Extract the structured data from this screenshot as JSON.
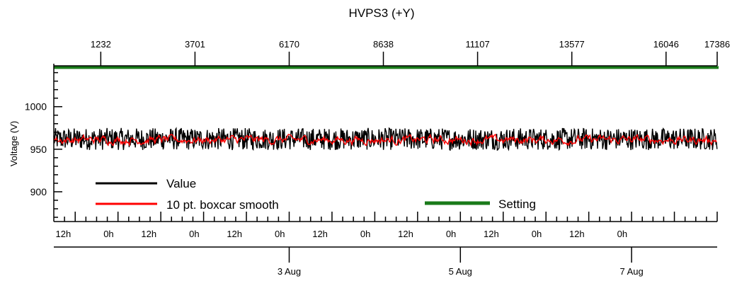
{
  "chart_data": {
    "type": "line",
    "title": "HVPS3 (+Y)",
    "ylabel": "Voltage (V)",
    "ylim": [
      865,
      1048
    ],
    "y_ticks": [
      900,
      950,
      1000
    ],
    "top_axis_ticks": [
      "1232",
      "3701",
      "6170",
      "8638",
      "11107",
      "13577",
      "16046",
      "17386"
    ],
    "time_axis": {
      "start": "2024-07-31T06:00",
      "end": "2024-08-08T00:00",
      "note": "hourly ticks, labeled every 12 h"
    },
    "hour_tick_labels": [
      "12h",
      "0h",
      "12h",
      "0h",
      "12h",
      "0h",
      "12h",
      "0h",
      "12h",
      "0h",
      "12h",
      "0h",
      "12h",
      "0h"
    ],
    "date_labels": [
      "3 Aug",
      "5 Aug",
      "7 Aug"
    ],
    "series": [
      {
        "name": "Value",
        "color": "#000000",
        "style": "noisy band",
        "mean": 962,
        "min": 949,
        "max": 975
      },
      {
        "name": "10 pt. boxcar smooth",
        "color": "#ff0000",
        "style": "noisy band",
        "mean": 961,
        "min": 952,
        "max": 970
      },
      {
        "name": "Setting",
        "color": "#1a7a1a",
        "style": "flat line",
        "value": 1046
      }
    ],
    "grid": false,
    "legend_placement": "bottom-left and bottom-center"
  }
}
